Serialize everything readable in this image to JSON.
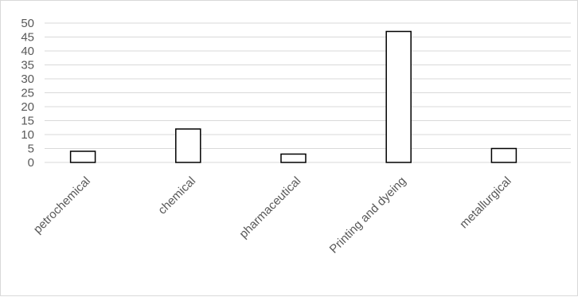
{
  "chart_data": {
    "type": "bar",
    "categories": [
      "petrochemical",
      "chemical",
      "pharmaceutical",
      "Printing and dyeing",
      "metallurgical"
    ],
    "values": [
      4,
      12,
      3,
      47,
      5
    ],
    "title": "",
    "xlabel": "",
    "ylabel": "",
    "ylim": [
      0,
      50
    ],
    "yticks": [
      0,
      5,
      10,
      15,
      20,
      25,
      30,
      35,
      40,
      45,
      50
    ],
    "grid": true,
    "legend": "none",
    "colors": {
      "bar_fill": "#ffffff",
      "bar_stroke": "#000000",
      "grid": "#d9d9d9",
      "text": "#595959"
    }
  }
}
